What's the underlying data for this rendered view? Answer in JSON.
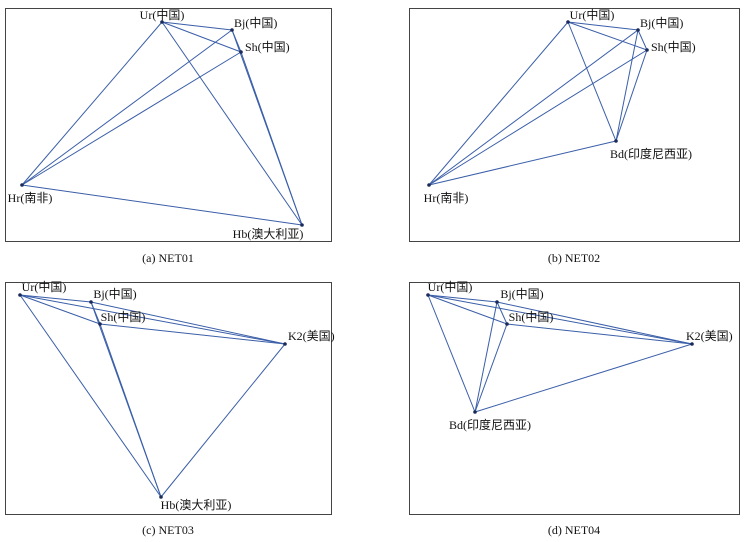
{
  "panels": [
    {
      "caption": "(a) NET01",
      "nodes": [
        {
          "label": "Ur(中国)"
        },
        {
          "label": "Bj(中国)"
        },
        {
          "label": "Sh(中国)"
        },
        {
          "label": "Hr(南非)"
        },
        {
          "label": "Hb(澳大利亚)"
        }
      ]
    },
    {
      "caption": "(b) NET02",
      "nodes": [
        {
          "label": "Ur(中国)"
        },
        {
          "label": "Bj(中国)"
        },
        {
          "label": "Sh(中国)"
        },
        {
          "label": "Bd(印度尼西亚)"
        },
        {
          "label": "Hr(南非)"
        }
      ]
    },
    {
      "caption": "(c) NET03",
      "nodes": [
        {
          "label": "Ur(中国)"
        },
        {
          "label": "Bj(中国)"
        },
        {
          "label": "Sh(中国)"
        },
        {
          "label": "K2(美国)"
        },
        {
          "label": "Hb(澳大利亚)"
        }
      ]
    },
    {
      "caption": "(d) NET04",
      "nodes": [
        {
          "label": "Ur(中国)"
        },
        {
          "label": "Bj(中国)"
        },
        {
          "label": "Sh(中国)"
        },
        {
          "label": "K2(美国)"
        },
        {
          "label": "Bd(印度尼西亚)"
        }
      ]
    }
  ]
}
